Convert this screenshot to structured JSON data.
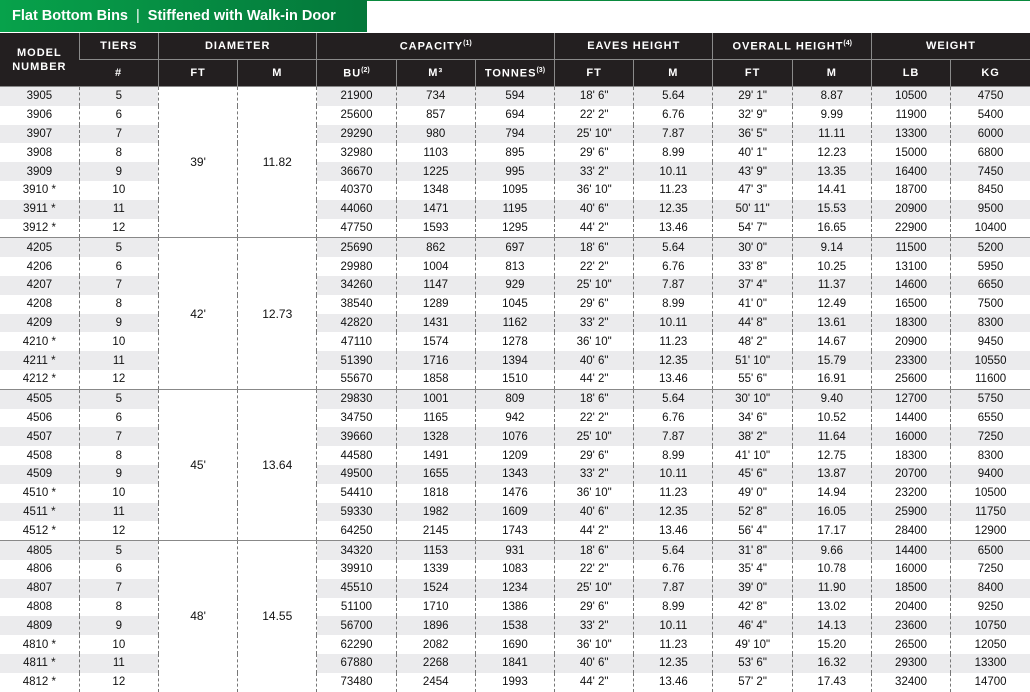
{
  "title": {
    "main": "Flat Bottom Bins",
    "separator": "|",
    "sub": "Stiffened with Walk-in Door"
  },
  "headers": {
    "model": "MODEL NUMBER",
    "tiers": "TIERS",
    "tiers_unit": "#",
    "diameter": "DIAMETER",
    "capacity": "CAPACITY",
    "capacity_note": "(1)",
    "eaves": "EAVES HEIGHT",
    "overall": "OVERALL HEIGHT",
    "overall_note": "(4)",
    "weight": "WEIGHT",
    "ft": "FT",
    "m": "M",
    "bu": "BU",
    "bu_note": "(2)",
    "m3": "M³",
    "tonnes": "TONNES",
    "tonnes_note": "(3)",
    "eft": "FT",
    "em": "M",
    "oft": "FT",
    "om": "M",
    "lb": "LB",
    "kg": "KG"
  },
  "groups": [
    {
      "dia_ft": "39'",
      "dia_m": "11.82",
      "rows": [
        [
          "3905",
          "5",
          "21900",
          "734",
          "594",
          "18' 6\"",
          "5.64",
          "29' 1\"",
          "8.87",
          "10500",
          "4750"
        ],
        [
          "3906",
          "6",
          "25600",
          "857",
          "694",
          "22' 2\"",
          "6.76",
          "32' 9\"",
          "9.99",
          "11900",
          "5400"
        ],
        [
          "3907",
          "7",
          "29290",
          "980",
          "794",
          "25' 10\"",
          "7.87",
          "36' 5\"",
          "11.11",
          "13300",
          "6000"
        ],
        [
          "3908",
          "8",
          "32980",
          "1103",
          "895",
          "29' 6\"",
          "8.99",
          "40' 1\"",
          "12.23",
          "15000",
          "6800"
        ],
        [
          "3909",
          "9",
          "36670",
          "1225",
          "995",
          "33' 2\"",
          "10.11",
          "43' 9\"",
          "13.35",
          "16400",
          "7450"
        ],
        [
          "3910 *",
          "10",
          "40370",
          "1348",
          "1095",
          "36' 10\"",
          "11.23",
          "47' 3\"",
          "14.41",
          "18700",
          "8450"
        ],
        [
          "3911 *",
          "11",
          "44060",
          "1471",
          "1195",
          "40' 6\"",
          "12.35",
          "50' 11\"",
          "15.53",
          "20900",
          "9500"
        ],
        [
          "3912 *",
          "12",
          "47750",
          "1593",
          "1295",
          "44' 2\"",
          "13.46",
          "54' 7\"",
          "16.65",
          "22900",
          "10400"
        ]
      ]
    },
    {
      "dia_ft": "42'",
      "dia_m": "12.73",
      "rows": [
        [
          "4205",
          "5",
          "25690",
          "862",
          "697",
          "18' 6\"",
          "5.64",
          "30' 0\"",
          "9.14",
          "11500",
          "5200"
        ],
        [
          "4206",
          "6",
          "29980",
          "1004",
          "813",
          "22' 2\"",
          "6.76",
          "33' 8\"",
          "10.25",
          "13100",
          "5950"
        ],
        [
          "4207",
          "7",
          "34260",
          "1147",
          "929",
          "25' 10\"",
          "7.87",
          "37' 4\"",
          "11.37",
          "14600",
          "6650"
        ],
        [
          "4208",
          "8",
          "38540",
          "1289",
          "1045",
          "29' 6\"",
          "8.99",
          "41' 0\"",
          "12.49",
          "16500",
          "7500"
        ],
        [
          "4209",
          "9",
          "42820",
          "1431",
          "1162",
          "33' 2\"",
          "10.11",
          "44' 8\"",
          "13.61",
          "18300",
          "8300"
        ],
        [
          "4210 *",
          "10",
          "47110",
          "1574",
          "1278",
          "36' 10\"",
          "11.23",
          "48' 2\"",
          "14.67",
          "20900",
          "9450"
        ],
        [
          "4211 *",
          "11",
          "51390",
          "1716",
          "1394",
          "40' 6\"",
          "12.35",
          "51' 10\"",
          "15.79",
          "23300",
          "10550"
        ],
        [
          "4212 *",
          "12",
          "55670",
          "1858",
          "1510",
          "44' 2\"",
          "13.46",
          "55' 6\"",
          "16.91",
          "25600",
          "11600"
        ]
      ]
    },
    {
      "dia_ft": "45'",
      "dia_m": "13.64",
      "rows": [
        [
          "4505",
          "5",
          "29830",
          "1001",
          "809",
          "18' 6\"",
          "5.64",
          "30' 10\"",
          "9.40",
          "12700",
          "5750"
        ],
        [
          "4506",
          "6",
          "34750",
          "1165",
          "942",
          "22' 2\"",
          "6.76",
          "34' 6\"",
          "10.52",
          "14400",
          "6550"
        ],
        [
          "4507",
          "7",
          "39660",
          "1328",
          "1076",
          "25' 10\"",
          "7.87",
          "38' 2\"",
          "11.64",
          "16000",
          "7250"
        ],
        [
          "4508",
          "8",
          "44580",
          "1491",
          "1209",
          "29' 6\"",
          "8.99",
          "41' 10\"",
          "12.75",
          "18300",
          "8300"
        ],
        [
          "4509",
          "9",
          "49500",
          "1655",
          "1343",
          "33' 2\"",
          "10.11",
          "45' 6\"",
          "13.87",
          "20700",
          "9400"
        ],
        [
          "4510 *",
          "10",
          "54410",
          "1818",
          "1476",
          "36' 10\"",
          "11.23",
          "49' 0\"",
          "14.94",
          "23200",
          "10500"
        ],
        [
          "4511 *",
          "11",
          "59330",
          "1982",
          "1609",
          "40' 6\"",
          "12.35",
          "52' 8\"",
          "16.05",
          "25900",
          "11750"
        ],
        [
          "4512 *",
          "12",
          "64250",
          "2145",
          "1743",
          "44' 2\"",
          "13.46",
          "56' 4\"",
          "17.17",
          "28400",
          "12900"
        ]
      ]
    },
    {
      "dia_ft": "48'",
      "dia_m": "14.55",
      "rows": [
        [
          "4805",
          "5",
          "34320",
          "1153",
          "931",
          "18' 6\"",
          "5.64",
          "31' 8\"",
          "9.66",
          "14400",
          "6500"
        ],
        [
          "4806",
          "6",
          "39910",
          "1339",
          "1083",
          "22' 2\"",
          "6.76",
          "35' 4\"",
          "10.78",
          "16000",
          "7250"
        ],
        [
          "4807",
          "7",
          "45510",
          "1524",
          "1234",
          "25' 10\"",
          "7.87",
          "39' 0\"",
          "11.90",
          "18500",
          "8400"
        ],
        [
          "4808",
          "8",
          "51100",
          "1710",
          "1386",
          "29' 6\"",
          "8.99",
          "42' 8\"",
          "13.02",
          "20400",
          "9250"
        ],
        [
          "4809",
          "9",
          "56700",
          "1896",
          "1538",
          "33' 2\"",
          "10.11",
          "46' 4\"",
          "14.13",
          "23600",
          "10750"
        ],
        [
          "4810 *",
          "10",
          "62290",
          "2082",
          "1690",
          "36' 10\"",
          "11.23",
          "49' 10\"",
          "15.20",
          "26500",
          "12050"
        ],
        [
          "4811 *",
          "11",
          "67880",
          "2268",
          "1841",
          "40' 6\"",
          "12.35",
          "53' 6\"",
          "16.32",
          "29300",
          "13300"
        ],
        [
          "4812 *",
          "12",
          "73480",
          "2454",
          "1993",
          "44' 2\"",
          "13.46",
          "57' 2\"",
          "17.43",
          "32400",
          "14700"
        ]
      ]
    }
  ]
}
